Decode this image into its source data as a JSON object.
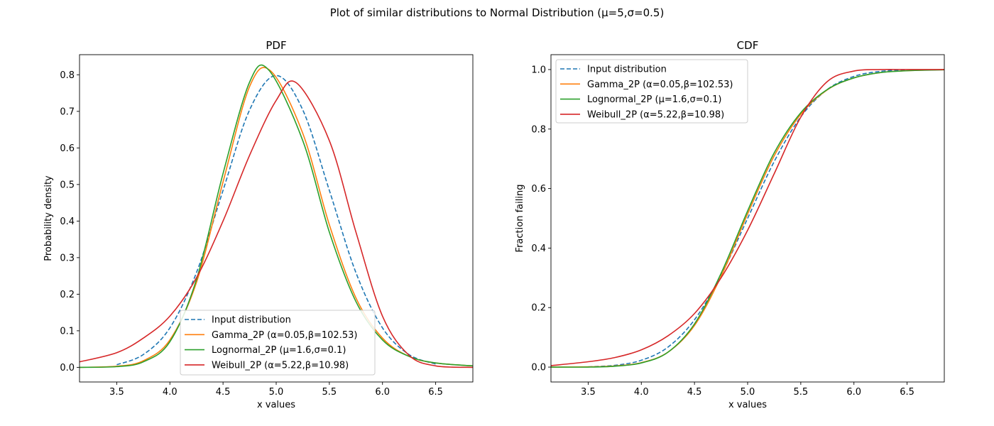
{
  "figure": {
    "suptitle": "Plot of similar distributions to Normal Distribution (μ=5,σ=0.5)"
  },
  "colors": {
    "input": "#1f77b4",
    "gamma": "#ff7f0e",
    "lognormal": "#2ca02c",
    "weibull": "#d62728"
  },
  "chart_data": [
    {
      "type": "line",
      "title": "PDF",
      "xlabel": "x values",
      "ylabel": "Probability density",
      "xlim": [
        3.15,
        6.85
      ],
      "ylim": [
        -0.04,
        0.855
      ],
      "xticks": [
        "3.5",
        "4.0",
        "4.5",
        "5.0",
        "5.5",
        "6.0",
        "6.5"
      ],
      "yticks": [
        "0.0",
        "0.1",
        "0.2",
        "0.3",
        "0.4",
        "0.5",
        "0.6",
        "0.7",
        "0.8"
      ],
      "legend_position": "lower-center",
      "grid": false,
      "series": [
        {
          "name": "Input distribution",
          "style": "dashed",
          "color": "#1f77b4",
          "x": [
            3.5,
            3.75,
            4.0,
            4.25,
            4.5,
            4.75,
            5.0,
            5.25,
            5.5,
            5.75,
            6.0,
            6.25,
            6.5
          ],
          "y": [
            0.007,
            0.035,
            0.108,
            0.259,
            0.484,
            0.704,
            0.798,
            0.704,
            0.484,
            0.259,
            0.108,
            0.035,
            0.009
          ]
        },
        {
          "name": "Gamma_2P (α=0.05,β=102.53)",
          "style": "solid",
          "color": "#ff7f0e",
          "x": [
            3.15,
            3.5,
            3.75,
            4.0,
            4.25,
            4.5,
            4.75,
            4.95,
            5.25,
            5.5,
            5.75,
            6.0,
            6.25,
            6.5,
            6.85
          ],
          "y": [
            0.0,
            0.003,
            0.018,
            0.075,
            0.232,
            0.507,
            0.768,
            0.81,
            0.64,
            0.39,
            0.19,
            0.08,
            0.03,
            0.012,
            0.004
          ]
        },
        {
          "name": "Lognormal_2P (μ=1.6,σ=0.1)",
          "style": "solid",
          "color": "#2ca02c",
          "x": [
            3.15,
            3.5,
            3.75,
            4.0,
            4.25,
            4.5,
            4.75,
            4.93,
            5.25,
            5.5,
            5.75,
            6.0,
            6.25,
            6.5,
            6.85
          ],
          "y": [
            0.0,
            0.002,
            0.015,
            0.07,
            0.24,
            0.53,
            0.78,
            0.813,
            0.62,
            0.37,
            0.18,
            0.075,
            0.03,
            0.012,
            0.004
          ]
        },
        {
          "name": "Weibull_2P (α=5.22,β=10.98)",
          "style": "solid",
          "color": "#d62728",
          "x": [
            3.15,
            3.5,
            3.75,
            4.0,
            4.25,
            4.5,
            4.75,
            5.0,
            5.19,
            5.5,
            5.75,
            6.0,
            6.25,
            6.5,
            6.85
          ],
          "y": [
            0.015,
            0.04,
            0.08,
            0.14,
            0.245,
            0.4,
            0.58,
            0.73,
            0.778,
            0.62,
            0.37,
            0.14,
            0.033,
            0.004,
            0.0
          ]
        }
      ]
    },
    {
      "type": "line",
      "title": "CDF",
      "xlabel": "x values",
      "ylabel": "Fraction failing",
      "xlim": [
        3.15,
        6.85
      ],
      "ylim": [
        -0.05,
        1.05
      ],
      "xticks": [
        "3.5",
        "4.0",
        "4.5",
        "5.0",
        "5.5",
        "6.0",
        "6.5"
      ],
      "yticks": [
        "0.0",
        "0.2",
        "0.4",
        "0.6",
        "0.8",
        "1.0"
      ],
      "legend_position": "upper-left",
      "grid": false,
      "series": [
        {
          "name": "Input distribution",
          "style": "dashed",
          "color": "#1f77b4",
          "x": [
            3.5,
            3.75,
            4.0,
            4.25,
            4.5,
            4.75,
            5.0,
            5.25,
            5.5,
            5.75,
            6.0,
            6.25,
            6.5
          ],
          "y": [
            0.001,
            0.006,
            0.023,
            0.067,
            0.159,
            0.309,
            0.5,
            0.691,
            0.841,
            0.933,
            0.977,
            0.994,
            0.999
          ]
        },
        {
          "name": "Gamma_2P (α=0.05,β=102.53)",
          "style": "solid",
          "color": "#ff7f0e",
          "x": [
            3.15,
            3.5,
            3.75,
            4.0,
            4.25,
            4.5,
            4.75,
            5.0,
            5.25,
            5.5,
            5.75,
            6.0,
            6.25,
            6.5,
            6.85
          ],
          "y": [
            0.0,
            0.001,
            0.004,
            0.015,
            0.05,
            0.14,
            0.305,
            0.515,
            0.71,
            0.85,
            0.932,
            0.972,
            0.99,
            0.996,
            1.0
          ]
        },
        {
          "name": "Lognormal_2P (μ=1.6,σ=0.1)",
          "style": "solid",
          "color": "#2ca02c",
          "x": [
            3.15,
            3.5,
            3.75,
            4.0,
            4.25,
            4.5,
            4.75,
            5.0,
            5.25,
            5.5,
            5.75,
            6.0,
            6.25,
            6.5,
            6.85
          ],
          "y": [
            0.0,
            0.0,
            0.003,
            0.014,
            0.05,
            0.145,
            0.315,
            0.525,
            0.72,
            0.855,
            0.933,
            0.972,
            0.99,
            0.996,
            0.999
          ]
        },
        {
          "name": "Weibull_2P (α=5.22,β=10.98)",
          "style": "solid",
          "color": "#d62728",
          "x": [
            3.15,
            3.5,
            3.75,
            4.0,
            4.25,
            4.5,
            4.75,
            5.0,
            5.25,
            5.5,
            5.75,
            6.0,
            6.25,
            6.5,
            6.85
          ],
          "y": [
            0.005,
            0.018,
            0.032,
            0.058,
            0.105,
            0.18,
            0.3,
            0.46,
            0.65,
            0.84,
            0.96,
            0.995,
            1.0,
            1.0,
            1.0
          ]
        }
      ]
    }
  ]
}
